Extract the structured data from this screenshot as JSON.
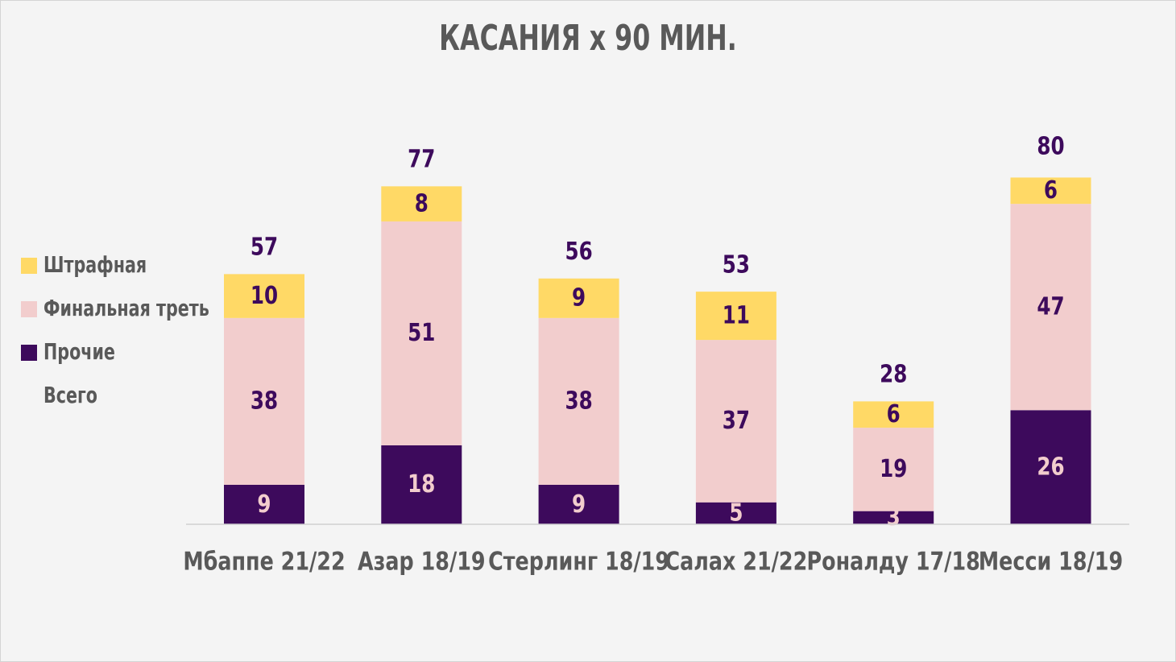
{
  "title": "КАСАНИЯ x 90 МИН.",
  "legend": [
    {
      "label": "Штрафная",
      "color": "#ffd966"
    },
    {
      "label": "Финальная треть",
      "color": "#f2cdcd"
    },
    {
      "label": "Прочие",
      "color": "#3d0a5c"
    },
    {
      "label": "Всего",
      "color": null
    }
  ],
  "chart_data": {
    "type": "bar",
    "stacked": true,
    "title": "КАСАНИЯ x 90 МИН.",
    "categories": [
      "Мбаппе 21/22",
      "Азар 18/19",
      "Стерлинг 18/19",
      "Салах 21/22",
      "Роналду 17/18",
      "Месси 18/19"
    ],
    "series": [
      {
        "name": "Прочие",
        "color": "#3d0a5c",
        "label_color": "#f2cdcd",
        "values": [
          9,
          18,
          9,
          5,
          3,
          26
        ]
      },
      {
        "name": "Финальная треть",
        "color": "#f2cdcd",
        "label_color": "#3d0a5c",
        "values": [
          38,
          51,
          38,
          37,
          19,
          47
        ]
      },
      {
        "name": "Штрафная",
        "color": "#ffd966",
        "label_color": "#3d0a5c",
        "values": [
          10,
          8,
          9,
          11,
          6,
          6
        ]
      }
    ],
    "totals": {
      "name": "Всего",
      "color": "#3d0a5c",
      "values": [
        57,
        77,
        56,
        53,
        28,
        80
      ]
    },
    "ylim": [
      0,
      80
    ],
    "grid": false,
    "legend_position": "left"
  }
}
